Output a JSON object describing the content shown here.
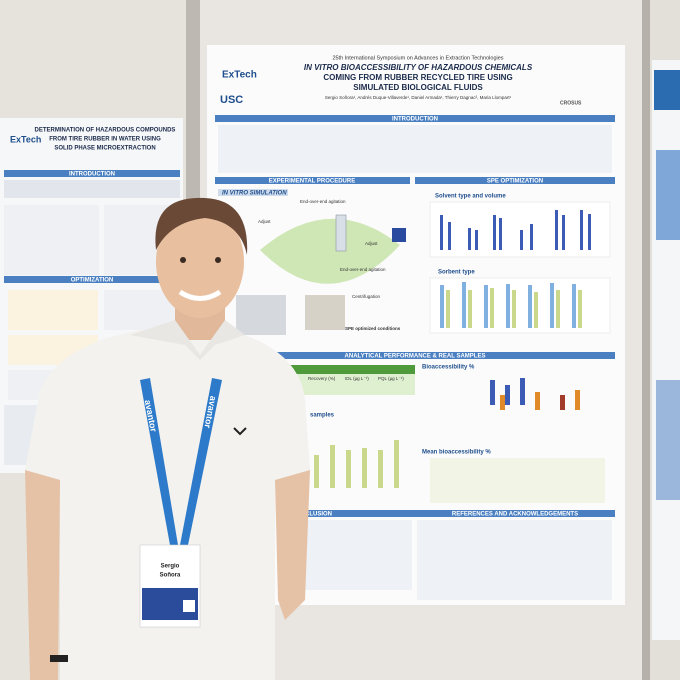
{
  "main_poster": {
    "event": "25th International Symposium on Advances in Extraction Technologies",
    "title_lines": [
      "IN VITRO BIOACCESSIBILITY OF HAZARDOUS CHEMICALS",
      "COMING FROM RUBBER RECYCLED TIRE USING",
      "SIMULATED BIOLOGICAL FLUIDS"
    ],
    "authors": "Sergio Soñora¹, Andrés Duque-Villaverde¹, Daniel Armada¹, Thierry Dagnac², Maria Llompart¹",
    "logos": [
      "ExTech",
      "USC",
      "CROSUS"
    ],
    "sections": {
      "introduction": "INTRODUCTION",
      "experimental": "EXPERIMENTAL PROCEDURE",
      "in_vitro": "IN VITRO SIMULATION",
      "spe": "SPE OPTIMIZATION",
      "solvent": "Solvent type and volume",
      "sorbent": "Sorbent type",
      "analytical": "ANALYTICAL PERFORMANCE & REAL SAMPLES",
      "bioaccessibility": "Bioaccessibility %",
      "mean_bioaccessibility": "Mean bioaccessibility %",
      "samples": "samples",
      "conclusion": "CLUSION",
      "references": "REFERENCES AND ACKNOWLEDGEMENTS"
    },
    "steps": [
      "Adjust",
      "End-over-end agitation",
      "Adjust",
      "End-over-end agitation",
      "Centrifugation",
      "SPE optimized conditions"
    ],
    "table_headers": [
      "Recovery (%)",
      "IDL (µg L⁻¹)",
      "PQL (µg L⁻¹)"
    ]
  },
  "left_poster": {
    "title_lines": [
      "DETERMINATION OF HAZARDOUS COMPOUNDS",
      "FROM TIRE RUBBER IN WATER USING",
      "SOLID PHASE MICROEXTRACTION"
    ],
    "logo": "ExTech",
    "sections": [
      "INTRODUCTION",
      "OPTIMIZATION"
    ]
  },
  "badge": {
    "first_name": "Sergio",
    "last_name": "Soñora"
  },
  "lanyard": "avantor"
}
